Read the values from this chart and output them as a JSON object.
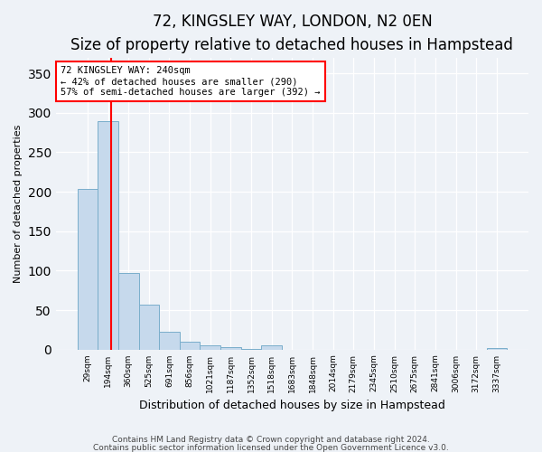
{
  "title": "72, KINGSLEY WAY, LONDON, N2 0EN",
  "subtitle": "Size of property relative to detached houses in Hampstead",
  "xlabel": "Distribution of detached houses by size in Hampstead",
  "ylabel": "Number of detached properties",
  "footnote1": "Contains HM Land Registry data © Crown copyright and database right 2024.",
  "footnote2": "Contains public sector information licensed under the Open Government Licence v3.0.",
  "categories": [
    "29sqm",
    "194sqm",
    "360sqm",
    "525sqm",
    "691sqm",
    "856sqm",
    "1021sqm",
    "1187sqm",
    "1352sqm",
    "1518sqm",
    "1683sqm",
    "1848sqm",
    "2014sqm",
    "2179sqm",
    "2345sqm",
    "2510sqm",
    "2675sqm",
    "2841sqm",
    "3006sqm",
    "3172sqm",
    "3337sqm"
  ],
  "values": [
    203,
    290,
    97,
    57,
    22,
    10,
    5,
    3,
    1,
    5,
    0,
    0,
    0,
    0,
    0,
    0,
    0,
    0,
    0,
    0,
    2
  ],
  "bar_color": "#c6d9ec",
  "bar_edge_color": "#7aaecb",
  "red_line_x": 1.15,
  "annotation_text": "72 KINGSLEY WAY: 240sqm\n← 42% of detached houses are smaller (290)\n57% of semi-detached houses are larger (392) →",
  "annotation_box_color": "white",
  "annotation_box_edge_color": "red",
  "ylim": [
    0,
    370
  ],
  "background_color": "#eef2f7",
  "plot_bg_color": "#eef2f7",
  "title_fontsize": 12,
  "subtitle_fontsize": 10,
  "ylabel_fontsize": 8,
  "xlabel_fontsize": 9,
  "tick_fontsize": 6.5,
  "annot_fontsize": 7.5,
  "footnote_fontsize": 6.5
}
